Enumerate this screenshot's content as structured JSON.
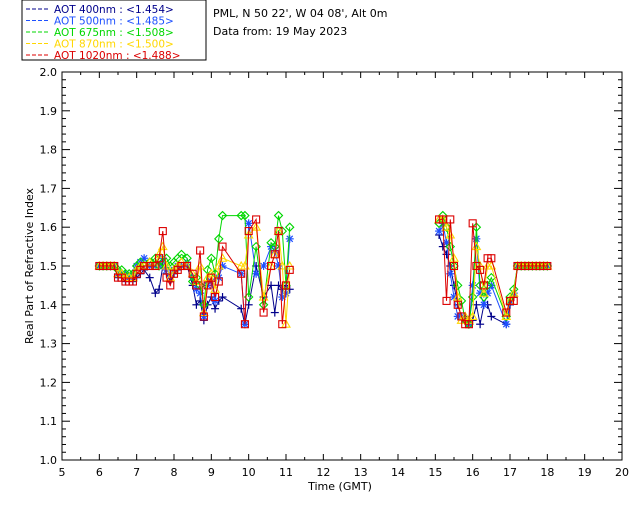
{
  "chart_data": {
    "type": "line",
    "title": "",
    "info_lines": [
      "PML, N 50 22', W 04 08', Alt 0m",
      "Data from: 19 May 2023"
    ],
    "xlabel": "Time (GMT)",
    "ylabel": "Real Part of Refractive Index",
    "xlim": [
      5,
      20
    ],
    "ylim": [
      1.0,
      2.0
    ],
    "xticks": [
      "5",
      "6",
      "7",
      "8",
      "9",
      "10",
      "11",
      "12",
      "13",
      "14",
      "15",
      "16",
      "17",
      "18",
      "19",
      "20"
    ],
    "yticks": [
      "1.0",
      "1.1",
      "1.2",
      "1.3",
      "1.4",
      "1.5",
      "1.6",
      "1.7",
      "1.8",
      "1.9",
      "2.0"
    ],
    "grid": false,
    "legend_position": "top-left",
    "series": [
      {
        "name": "AOT  400nm : <1.454>",
        "color": "#00008b",
        "marker": "plus",
        "x": [
          6.0,
          6.1,
          6.2,
          6.3,
          6.4,
          6.5,
          6.6,
          6.7,
          6.8,
          6.9,
          7.0,
          7.1,
          7.2,
          7.35,
          7.5,
          7.6,
          7.7,
          7.8,
          7.9,
          8.0,
          8.1,
          8.2,
          8.35,
          8.5,
          8.6,
          8.7,
          8.8,
          8.9,
          9.0,
          9.1,
          9.2,
          9.3,
          9.8,
          9.9,
          10.0,
          10.2,
          10.4,
          10.6,
          10.7,
          10.8,
          10.9,
          11.0,
          11.1,
          15.1,
          15.2,
          15.3,
          15.4,
          15.5,
          15.6,
          15.7,
          15.8,
          15.9,
          16.0,
          16.1,
          16.2,
          16.3,
          16.4,
          16.5,
          16.9,
          17.0,
          17.1,
          17.2,
          17.3,
          17.4,
          17.5,
          17.6,
          17.7,
          17.8,
          17.9,
          18.0
        ],
        "y": [
          1.5,
          1.5,
          1.5,
          1.5,
          1.5,
          1.47,
          1.47,
          1.46,
          1.46,
          1.46,
          1.47,
          1.48,
          1.49,
          1.47,
          1.43,
          1.44,
          1.5,
          1.48,
          1.46,
          1.48,
          1.49,
          1.5,
          1.5,
          1.45,
          1.4,
          1.41,
          1.36,
          1.4,
          1.42,
          1.39,
          1.41,
          1.42,
          1.39,
          1.35,
          1.4,
          1.5,
          1.42,
          1.45,
          1.38,
          1.45,
          1.44,
          1.45,
          1.44,
          1.58,
          1.55,
          1.53,
          1.5,
          1.45,
          1.4,
          1.37,
          1.37,
          1.35,
          1.36,
          1.4,
          1.35,
          1.4,
          1.4,
          1.37,
          1.35,
          1.4,
          1.42,
          1.5,
          1.5,
          1.5,
          1.5,
          1.5,
          1.5,
          1.5,
          1.5,
          1.5
        ]
      },
      {
        "name": "AOT  500nm : <1.485>",
        "color": "#1e50ff",
        "marker": "asterisk",
        "x": [
          6.0,
          6.1,
          6.2,
          6.3,
          6.4,
          6.5,
          6.6,
          6.7,
          6.8,
          6.9,
          7.0,
          7.1,
          7.2,
          7.35,
          7.5,
          7.6,
          7.7,
          7.8,
          7.9,
          8.0,
          8.1,
          8.2,
          8.35,
          8.5,
          8.6,
          8.7,
          8.8,
          8.9,
          9.0,
          9.1,
          9.2,
          9.3,
          9.8,
          9.9,
          10.0,
          10.2,
          10.4,
          10.6,
          10.7,
          10.8,
          10.9,
          11.0,
          11.1,
          15.1,
          15.2,
          15.3,
          15.4,
          15.5,
          15.6,
          15.7,
          15.8,
          15.9,
          16.0,
          16.1,
          16.2,
          16.3,
          16.4,
          16.5,
          16.9,
          17.0,
          17.1,
          17.2,
          17.3,
          17.4,
          17.5,
          17.6,
          17.7,
          17.8,
          17.9,
          18.0
        ],
        "y": [
          1.5,
          1.5,
          1.5,
          1.5,
          1.5,
          1.48,
          1.48,
          1.48,
          1.47,
          1.48,
          1.5,
          1.51,
          1.52,
          1.5,
          1.5,
          1.5,
          1.52,
          1.49,
          1.48,
          1.49,
          1.5,
          1.5,
          1.51,
          1.47,
          1.44,
          1.43,
          1.37,
          1.45,
          1.46,
          1.41,
          1.47,
          1.5,
          1.48,
          1.35,
          1.61,
          1.48,
          1.5,
          1.55,
          1.54,
          1.5,
          1.42,
          1.43,
          1.57,
          1.59,
          1.61,
          1.56,
          1.48,
          1.42,
          1.37,
          1.37,
          1.36,
          1.35,
          1.45,
          1.57,
          1.43,
          1.4,
          1.43,
          1.45,
          1.35,
          1.41,
          1.43,
          1.5,
          1.5,
          1.5,
          1.5,
          1.5,
          1.5,
          1.5,
          1.5,
          1.5
        ]
      },
      {
        "name": "AOT  675nm : <1.508>",
        "color": "#00d700",
        "marker": "diamond",
        "x": [
          6.0,
          6.1,
          6.2,
          6.3,
          6.4,
          6.5,
          6.6,
          6.7,
          6.8,
          6.9,
          7.0,
          7.1,
          7.2,
          7.35,
          7.5,
          7.6,
          7.7,
          7.8,
          7.9,
          8.0,
          8.1,
          8.2,
          8.35,
          8.5,
          8.6,
          8.7,
          8.8,
          8.9,
          9.0,
          9.1,
          9.2,
          9.3,
          9.8,
          9.9,
          10.0,
          10.2,
          10.4,
          10.6,
          10.7,
          10.8,
          10.9,
          11.0,
          11.1,
          15.1,
          15.2,
          15.3,
          15.4,
          15.5,
          15.6,
          15.7,
          15.8,
          15.9,
          16.0,
          16.1,
          16.2,
          16.3,
          16.4,
          16.5,
          16.9,
          17.0,
          17.1,
          17.2,
          17.3,
          17.4,
          17.5,
          17.6,
          17.7,
          17.8,
          17.9,
          18.0
        ],
        "y": [
          1.5,
          1.5,
          1.5,
          1.5,
          1.5,
          1.49,
          1.49,
          1.48,
          1.48,
          1.48,
          1.5,
          1.51,
          1.5,
          1.51,
          1.52,
          1.5,
          1.51,
          1.52,
          1.5,
          1.51,
          1.52,
          1.53,
          1.52,
          1.46,
          1.47,
          1.45,
          1.4,
          1.49,
          1.52,
          1.48,
          1.57,
          1.63,
          1.63,
          1.63,
          1.42,
          1.55,
          1.4,
          1.56,
          1.55,
          1.63,
          1.59,
          1.45,
          1.6,
          1.61,
          1.63,
          1.6,
          1.55,
          1.5,
          1.45,
          1.41,
          1.36,
          1.35,
          1.42,
          1.6,
          1.45,
          1.42,
          1.45,
          1.47,
          1.37,
          1.42,
          1.44,
          1.5,
          1.5,
          1.5,
          1.5,
          1.5,
          1.5,
          1.5,
          1.5,
          1.5
        ]
      },
      {
        "name": "AOT  870nm : <1.500>",
        "color": "#ffd700",
        "marker": "triangle",
        "x": [
          6.0,
          6.1,
          6.2,
          6.3,
          6.4,
          6.5,
          6.6,
          6.7,
          6.8,
          6.9,
          7.0,
          7.1,
          7.2,
          7.35,
          7.5,
          7.6,
          7.7,
          7.8,
          7.9,
          8.0,
          8.1,
          8.2,
          8.35,
          8.5,
          8.6,
          8.7,
          8.8,
          8.9,
          9.0,
          9.1,
          9.2,
          9.3,
          9.8,
          9.9,
          10.0,
          10.2,
          10.4,
          10.6,
          10.7,
          10.8,
          10.9,
          11.0,
          11.1,
          15.1,
          15.2,
          15.3,
          15.4,
          15.5,
          15.6,
          15.7,
          15.8,
          15.9,
          16.0,
          16.1,
          16.2,
          16.3,
          16.4,
          16.5,
          16.9,
          17.0,
          17.1,
          17.2,
          17.3,
          17.4,
          17.5,
          17.6,
          17.7,
          17.8,
          17.9,
          18.0
        ],
        "y": [
          1.5,
          1.5,
          1.5,
          1.5,
          1.5,
          1.48,
          1.48,
          1.47,
          1.47,
          1.47,
          1.49,
          1.5,
          1.5,
          1.51,
          1.5,
          1.53,
          1.55,
          1.5,
          1.47,
          1.49,
          1.5,
          1.51,
          1.5,
          1.48,
          1.46,
          1.5,
          1.38,
          1.47,
          1.48,
          1.44,
          1.5,
          1.52,
          1.5,
          1.5,
          1.58,
          1.6,
          1.42,
          1.5,
          1.53,
          1.59,
          1.5,
          1.35,
          1.5,
          1.62,
          1.62,
          1.6,
          1.58,
          1.52,
          1.42,
          1.36,
          1.37,
          1.36,
          1.37,
          1.55,
          1.5,
          1.43,
          1.5,
          1.5,
          1.37,
          1.41,
          1.43,
          1.5,
          1.5,
          1.5,
          1.5,
          1.5,
          1.5,
          1.5,
          1.5,
          1.5
        ]
      },
      {
        "name": "AOT 1020nm : <1.488>",
        "color": "#dc0000",
        "marker": "square",
        "x": [
          6.0,
          6.1,
          6.2,
          6.3,
          6.4,
          6.5,
          6.6,
          6.7,
          6.8,
          6.9,
          7.0,
          7.1,
          7.2,
          7.35,
          7.5,
          7.6,
          7.7,
          7.8,
          7.9,
          8.0,
          8.1,
          8.2,
          8.35,
          8.5,
          8.6,
          8.7,
          8.8,
          8.9,
          9.0,
          9.1,
          9.2,
          9.3,
          9.8,
          9.9,
          10.0,
          10.2,
          10.4,
          10.6,
          10.7,
          10.8,
          10.9,
          11.0,
          11.1,
          15.1,
          15.2,
          15.3,
          15.4,
          15.5,
          15.6,
          15.7,
          15.8,
          15.9,
          16.0,
          16.1,
          16.2,
          16.3,
          16.4,
          16.5,
          16.9,
          17.0,
          17.1,
          17.2,
          17.3,
          17.4,
          17.5,
          17.6,
          17.7,
          17.8,
          17.9,
          18.0
        ],
        "y": [
          1.5,
          1.5,
          1.5,
          1.5,
          1.5,
          1.47,
          1.47,
          1.46,
          1.46,
          1.46,
          1.48,
          1.49,
          1.5,
          1.5,
          1.5,
          1.52,
          1.59,
          1.47,
          1.45,
          1.48,
          1.49,
          1.5,
          1.5,
          1.48,
          1.45,
          1.54,
          1.37,
          1.45,
          1.47,
          1.42,
          1.46,
          1.55,
          1.48,
          1.35,
          1.59,
          1.62,
          1.38,
          1.5,
          1.53,
          1.59,
          1.35,
          1.45,
          1.49,
          1.62,
          1.62,
          1.41,
          1.62,
          1.5,
          1.4,
          1.37,
          1.35,
          1.35,
          1.61,
          1.5,
          1.49,
          1.45,
          1.52,
          1.52,
          1.38,
          1.41,
          1.41,
          1.5,
          1.5,
          1.5,
          1.5,
          1.5,
          1.5,
          1.5,
          1.5,
          1.5
        ]
      }
    ]
  }
}
